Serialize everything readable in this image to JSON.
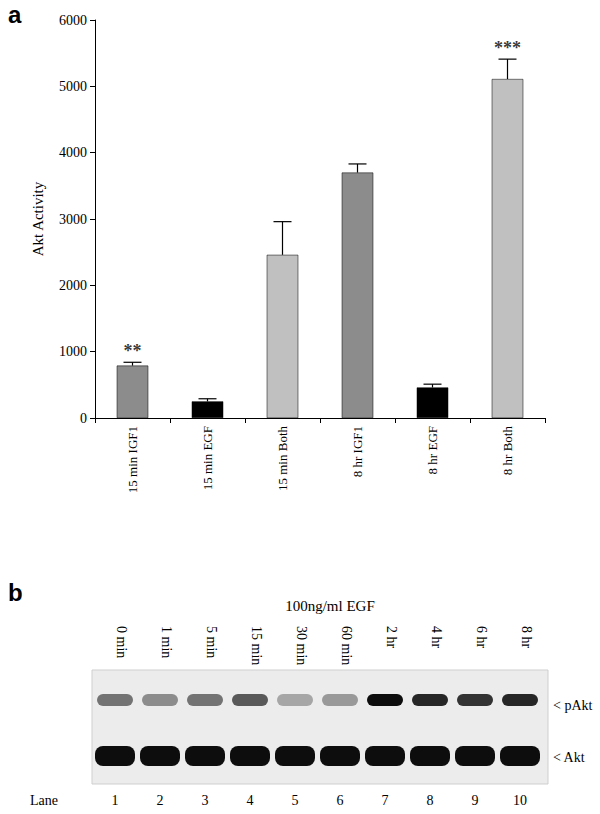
{
  "chart_data": {
    "type": "bar",
    "panel_label": "a",
    "y_label": "Akt Activity",
    "categories": [
      "15 min IGF1",
      "15 min EGF",
      "15 min Both",
      "8 hr IGF1",
      "8 hr EGF",
      "8 hr Both"
    ],
    "values": [
      790,
      250,
      2460,
      3700,
      460,
      5110
    ],
    "errors": [
      50,
      40,
      500,
      130,
      50,
      300
    ],
    "colors": [
      "#8c8c8c",
      "#000000",
      "#c0c0c0",
      "#8c8c8c",
      "#000000",
      "#c0c0c0"
    ],
    "annotations": [
      {
        "category": "15 min IGF1",
        "text": "**"
      },
      {
        "category": "8 hr Both",
        "text": "***"
      }
    ],
    "ylim": [
      0,
      6000
    ],
    "yticks": [
      0,
      1000,
      2000,
      3000,
      4000,
      5000,
      6000
    ],
    "grid": false
  },
  "blot": {
    "panel_label": "b",
    "title": "100ng/ml EGF",
    "lane_label": "Lane",
    "band_labels": [
      "< pAkt",
      "< Akt"
    ],
    "lanes": [
      {
        "lane": 1,
        "time": "0 min",
        "pakt": 0.55,
        "akt": 0.95
      },
      {
        "lane": 2,
        "time": "1 min",
        "pakt": 0.45,
        "akt": 0.95
      },
      {
        "lane": 3,
        "time": "5 min",
        "pakt": 0.55,
        "akt": 0.95
      },
      {
        "lane": 4,
        "time": "15 min",
        "pakt": 0.65,
        "akt": 0.95
      },
      {
        "lane": 5,
        "time": "30 min",
        "pakt": 0.35,
        "akt": 0.95
      },
      {
        "lane": 6,
        "time": "60 min",
        "pakt": 0.4,
        "akt": 0.95
      },
      {
        "lane": 7,
        "time": "2 hr",
        "pakt": 0.95,
        "akt": 0.95
      },
      {
        "lane": 8,
        "time": "4 hr",
        "pakt": 0.85,
        "akt": 0.95
      },
      {
        "lane": 9,
        "time": "6 hr",
        "pakt": 0.8,
        "akt": 0.95
      },
      {
        "lane": 10,
        "time": "8 hr",
        "pakt": 0.85,
        "akt": 0.95
      }
    ]
  }
}
